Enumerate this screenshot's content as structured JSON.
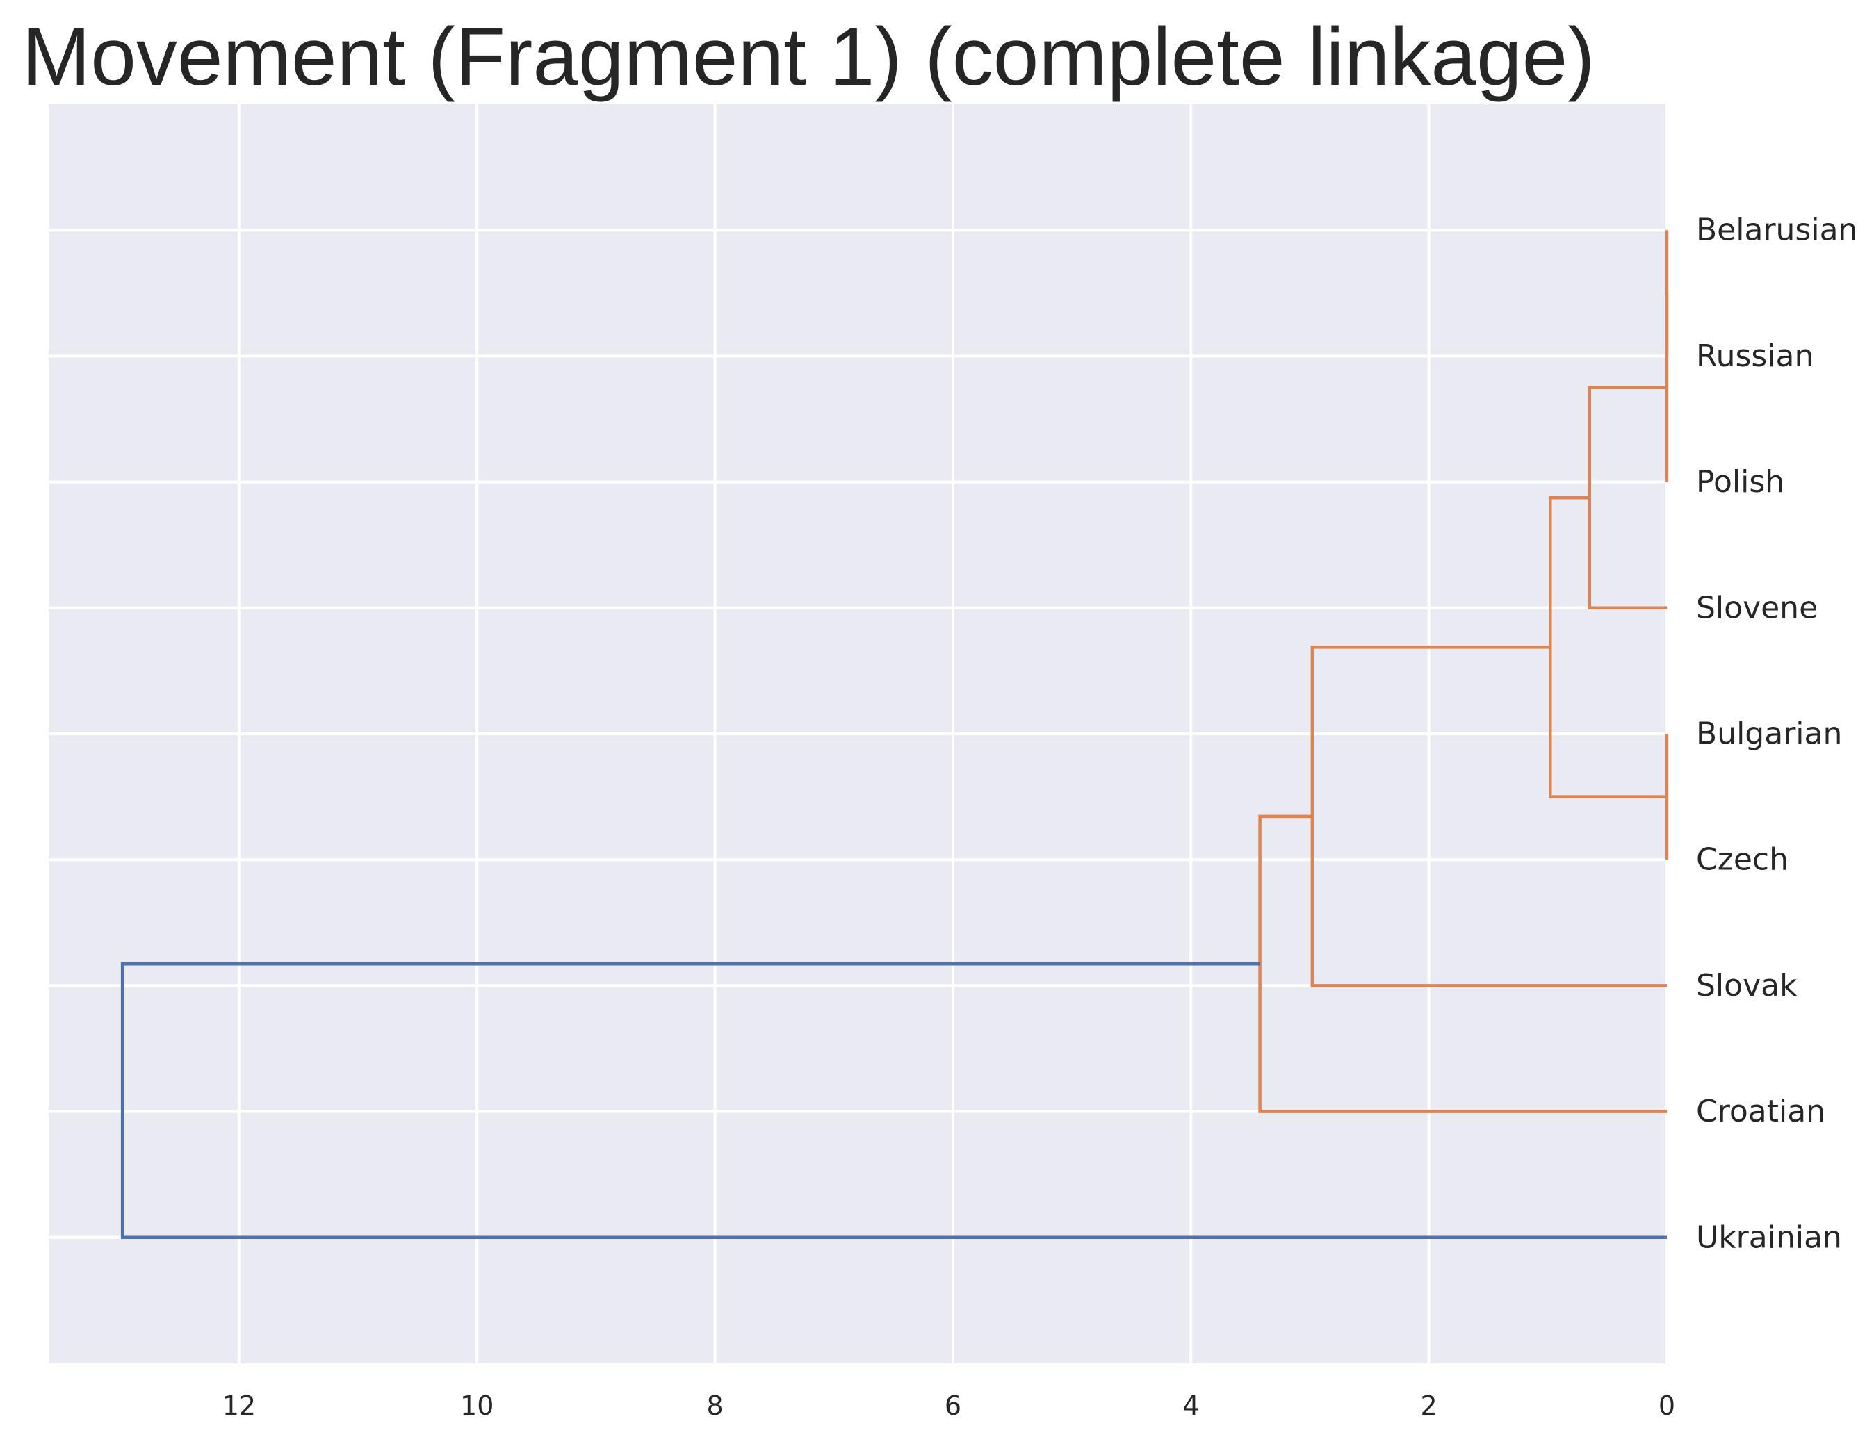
{
  "chart_data": {
    "type": "dendrogram",
    "title": "Movement (Fragment 1) (complete linkage)",
    "orientation": "left",
    "xlim": [
      13.6,
      0
    ],
    "xticks": [
      12,
      10,
      8,
      6,
      4,
      2,
      0
    ],
    "grid": true,
    "leaves": [
      "Belarusian",
      "Russian",
      "Polish",
      "Slovene",
      "Bulgarian",
      "Czech",
      "Slovak",
      "Croatian",
      "Ukrainian"
    ],
    "merges": [
      {
        "left": "Belarusian",
        "right": "Russian",
        "height": 0.0,
        "color": "#dd8452"
      },
      {
        "left": "Bulgarian",
        "right": "Czech",
        "height": 0.0,
        "color": "#dd8452"
      },
      {
        "left": "Belarusian+Russian",
        "right": "Polish",
        "height": 0.0,
        "color": "#dd8452"
      },
      {
        "left": "Belarusian+Russian+Polish",
        "right": "Slovene",
        "height": 0.65,
        "color": "#dd8452"
      },
      {
        "left": "Belarusian+Russian+Polish+Slovene",
        "right": "Bulgarian+Czech",
        "height": 0.98,
        "color": "#dd8452"
      },
      {
        "left": "Belarusian+Russian+Polish+Slovene+Bulgarian+Czech",
        "right": "Slovak",
        "height": 2.98,
        "color": "#dd8452"
      },
      {
        "left": "Belarusian+Russian+Polish+Slovene+Bulgarian+Czech+Slovak",
        "right": "Croatian",
        "height": 3.42,
        "color": "#dd8452"
      },
      {
        "left": "Belarusian+Russian+Polish+Slovene+Bulgarian+Czech+Slovak+Croatian",
        "right": "Ukrainian",
        "height": 12.98,
        "color": "#4c72b0"
      }
    ]
  }
}
